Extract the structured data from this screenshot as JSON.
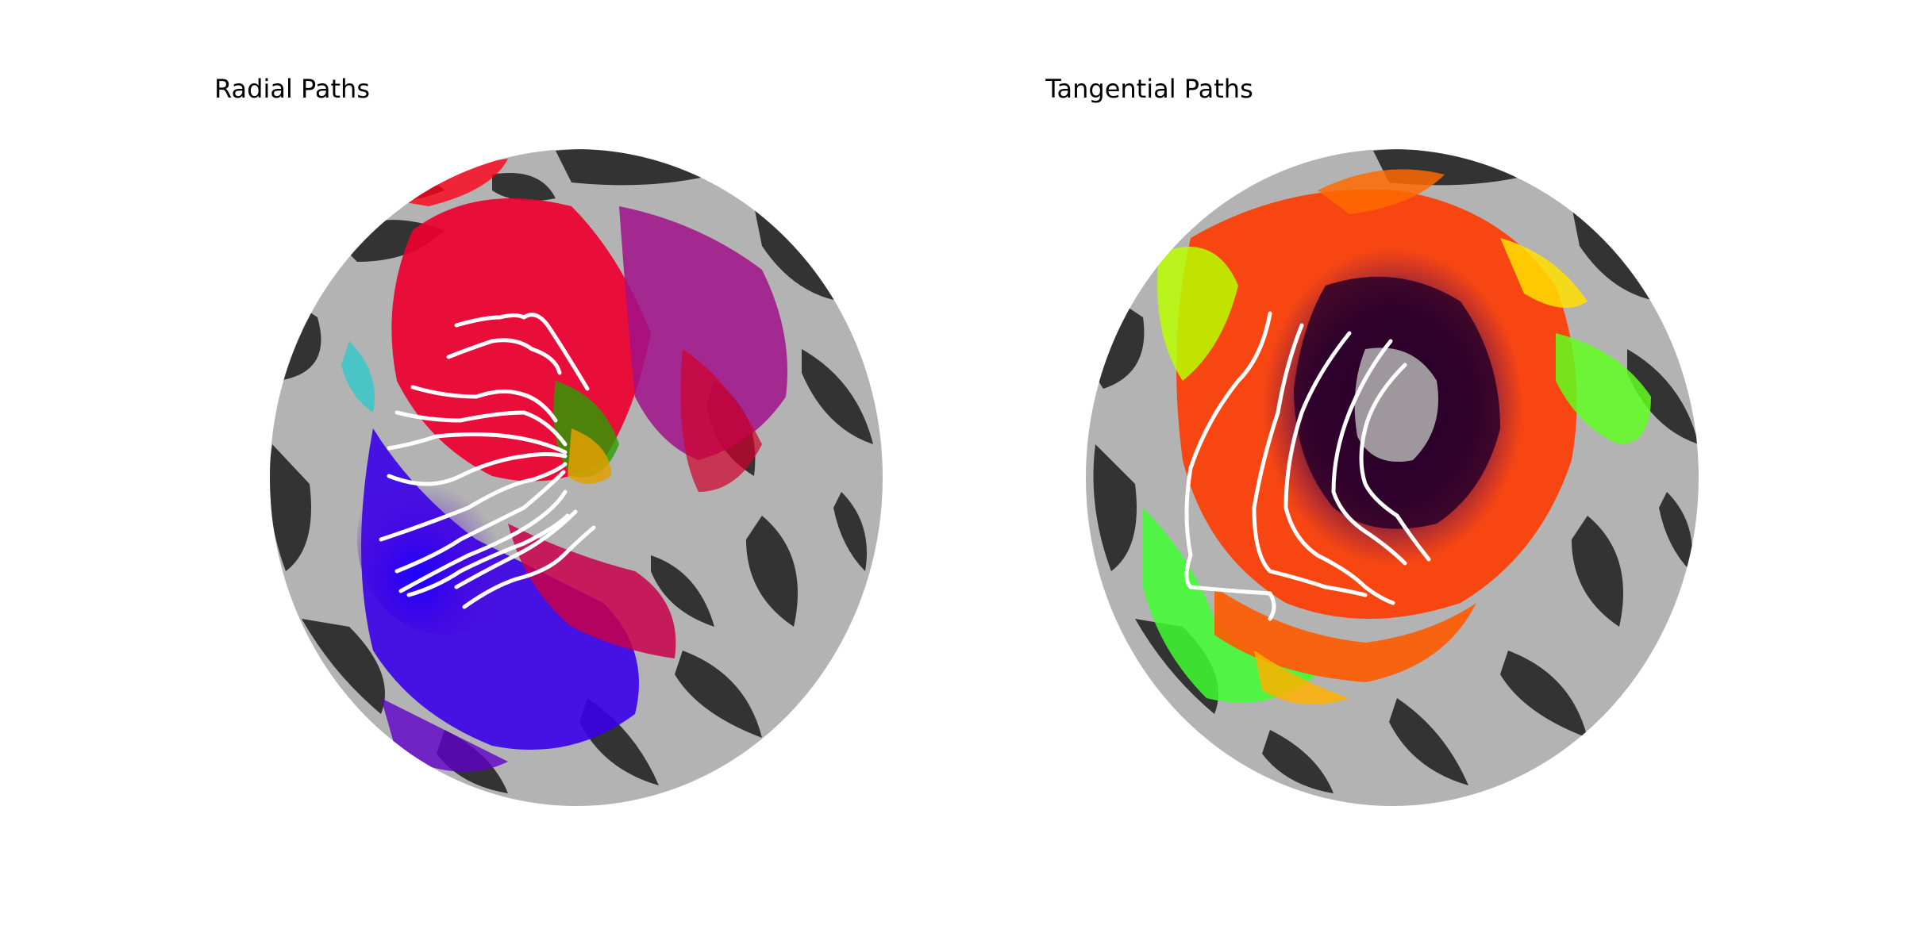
{
  "figure": {
    "panels": [
      {
        "title": "Radial Paths",
        "colormap": "polar-angle (blue-purple-red-green)",
        "path_color": "#ffffff",
        "path_count": 12
      },
      {
        "title": "Tangential Paths",
        "colormap": "eccentricity (black-purple-red-yellow-green)",
        "path_color": "#ffffff",
        "path_count": 5
      }
    ],
    "background_colors": {
      "sulcus": "#333333",
      "gyrus": "#b3b3b3"
    }
  }
}
